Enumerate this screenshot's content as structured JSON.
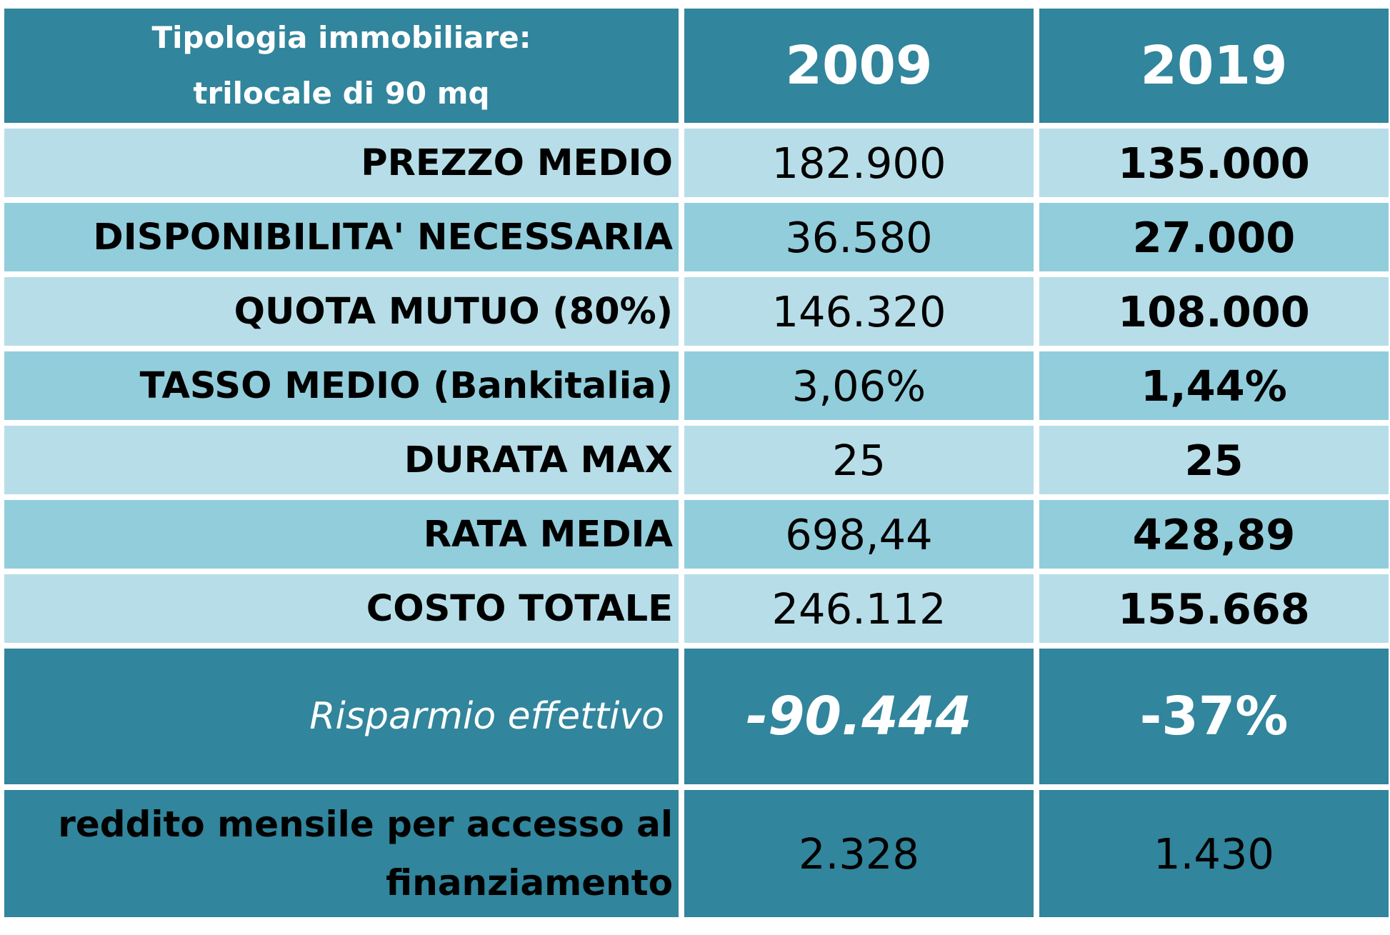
{
  "header": {
    "label_line1": "Tipologia immobiliare:",
    "label_line2": "trilocale di 90 mq",
    "year_a": "2009",
    "year_b": "2019"
  },
  "rows": [
    {
      "label": "PREZZO MEDIO",
      "v2009": "182.900",
      "v2019": "135.000",
      "shade": "light"
    },
    {
      "label": "DISPONIBILITA' NECESSARIA",
      "v2009": "36.580",
      "v2019": "27.000",
      "shade": "mid"
    },
    {
      "label": "QUOTA MUTUO (80%)",
      "v2009": "146.320",
      "v2019": "108.000",
      "shade": "light"
    },
    {
      "label": "TASSO MEDIO (Bankitalia)",
      "v2009": "3,06%",
      "v2019": "1,44%",
      "shade": "mid"
    },
    {
      "label": "DURATA MAX",
      "v2009": "25",
      "v2019": "25",
      "shade": "light"
    },
    {
      "label": "RATA MEDIA",
      "v2009": "698,44",
      "v2019": "428,89",
      "shade": "mid"
    },
    {
      "label": "COSTO TOTALE",
      "v2009": "246.112",
      "v2019": "155.668",
      "shade": "light"
    }
  ],
  "saving": {
    "label": "Risparmio effettivo",
    "amount": "-90.444",
    "percent": "-37%"
  },
  "income": {
    "label_line1": "reddito mensile per accesso al",
    "label_line2": "finanziamento",
    "v2009": "2.328",
    "v2019": "1.430"
  },
  "colors": {
    "dark": "#31859c",
    "light": "#b7dee8",
    "mid": "#92cddc"
  }
}
